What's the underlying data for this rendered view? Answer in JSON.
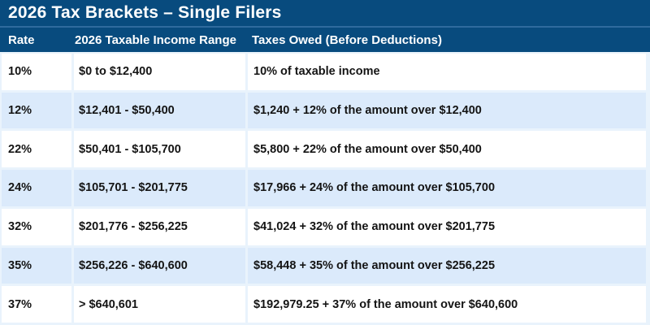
{
  "title": "2026 Tax Brackets – Single Filers",
  "table": {
    "columns": {
      "rate": "Rate",
      "range": "2026 Taxable Income Range",
      "owed": "Taxes Owed (Before Deductions)"
    },
    "rows": [
      {
        "rate": "10%",
        "range": "$0 to $12,400",
        "owed": "10% of taxable income"
      },
      {
        "rate": "12%",
        "range": "$12,401 - $50,400",
        "owed": "$1,240 + 12% of the amount over $12,400"
      },
      {
        "rate": "22%",
        "range": "$50,401 - $105,700",
        "owed": "$5,800 + 22% of the amount over $50,400"
      },
      {
        "rate": "24%",
        "range": "$105,701 - $201,775",
        "owed": "$17,966 + 24% of the amount over $105,700"
      },
      {
        "rate": "32%",
        "range": "$201,776 - $256,225",
        "owed": "$41,024 + 32% of the amount over $201,775"
      },
      {
        "rate": "35%",
        "range": "$256,226 - $640,600",
        "owed": "$58,448 + 35% of the amount over $256,225"
      },
      {
        "rate": "37%",
        "range": "> $640,601",
        "owed": "$192,979.25 + 37% of the amount over $640,600"
      }
    ]
  },
  "colors": {
    "header_bg": "#084B7E",
    "divider": "#2F6A9D",
    "row_bg": "#FFFFFF",
    "row_alt_bg": "#DBEAFB",
    "gap_bg": "#E9F3FC",
    "text_dark": "#141414",
    "text_light": "#FFFFFF"
  }
}
